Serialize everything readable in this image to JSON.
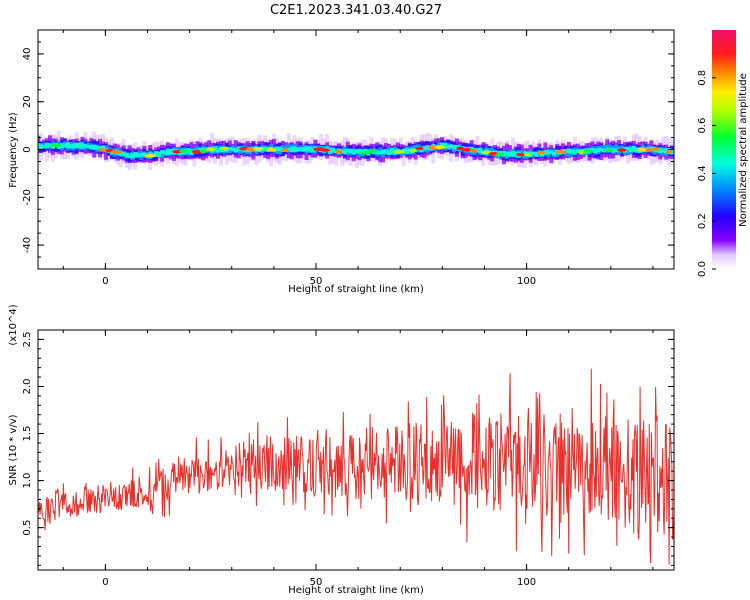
{
  "title": "C2E1.2023.341.03.40.G27",
  "chart_data": [
    {
      "type": "heatmap",
      "xlabel": "Height of straight line (km)",
      "ylabel": "Frequency (Hz)",
      "xlim": [
        -16,
        135
      ],
      "ylim": [
        -50,
        50
      ],
      "xticks": [
        0,
        50,
        100
      ],
      "yticks": [
        40,
        20,
        0,
        -20,
        -40
      ],
      "colorbar": {
        "label": "Normalized spectral amplitude",
        "range": [
          0,
          1
        ],
        "ticks": [
          "0.0",
          "0.2",
          "0.4",
          "0.6",
          "0.8"
        ],
        "colormap": "rainbow (white/purple to magenta)"
      },
      "band": {
        "description": "narrow band of spectral power around 0 Hz drifting slightly",
        "center_hz": [
          [
            -16,
            1.5
          ],
          [
            -5,
            1.5
          ],
          [
            0,
            0
          ],
          [
            5,
            -2.5
          ],
          [
            10,
            -2.5
          ],
          [
            15,
            -1
          ],
          [
            20,
            -1
          ],
          [
            25,
            0
          ],
          [
            30,
            0
          ],
          [
            40,
            0
          ],
          [
            50,
            0
          ],
          [
            60,
            -1
          ],
          [
            70,
            -1
          ],
          [
            80,
            1.5
          ],
          [
            90,
            -1
          ],
          [
            95,
            -2
          ],
          [
            100,
            -2
          ],
          [
            110,
            -1
          ],
          [
            120,
            0
          ],
          [
            130,
            0
          ],
          [
            135,
            -1
          ]
        ]
      }
    },
    {
      "type": "line",
      "xlabel": "Height of straight line (km)",
      "ylabel": "SNR (10 * v/v)",
      "y_multiplier": "(x10^4)",
      "xlim": [
        -16,
        135
      ],
      "ylim": [
        0.05,
        2.6
      ],
      "xticks": [
        0,
        50,
        100
      ],
      "yticks": [
        0.5,
        1.0,
        1.5,
        2.0,
        2.5
      ],
      "color": "#e8302c",
      "envelope_x": [
        -16,
        0,
        10,
        20,
        30,
        40,
        50,
        60,
        70,
        80,
        90,
        100,
        110,
        120,
        130,
        135
      ],
      "envelope_mean": [
        0.7,
        0.8,
        0.9,
        1.05,
        1.15,
        1.2,
        1.15,
        1.15,
        1.2,
        1.2,
        1.2,
        1.1,
        1.15,
        1.1,
        1.05,
        1.0
      ],
      "envelope_amp": [
        0.15,
        0.15,
        0.2,
        0.25,
        0.25,
        0.35,
        0.35,
        0.4,
        0.45,
        0.5,
        0.6,
        0.65,
        0.7,
        0.65,
        0.75,
        0.7
      ]
    }
  ]
}
